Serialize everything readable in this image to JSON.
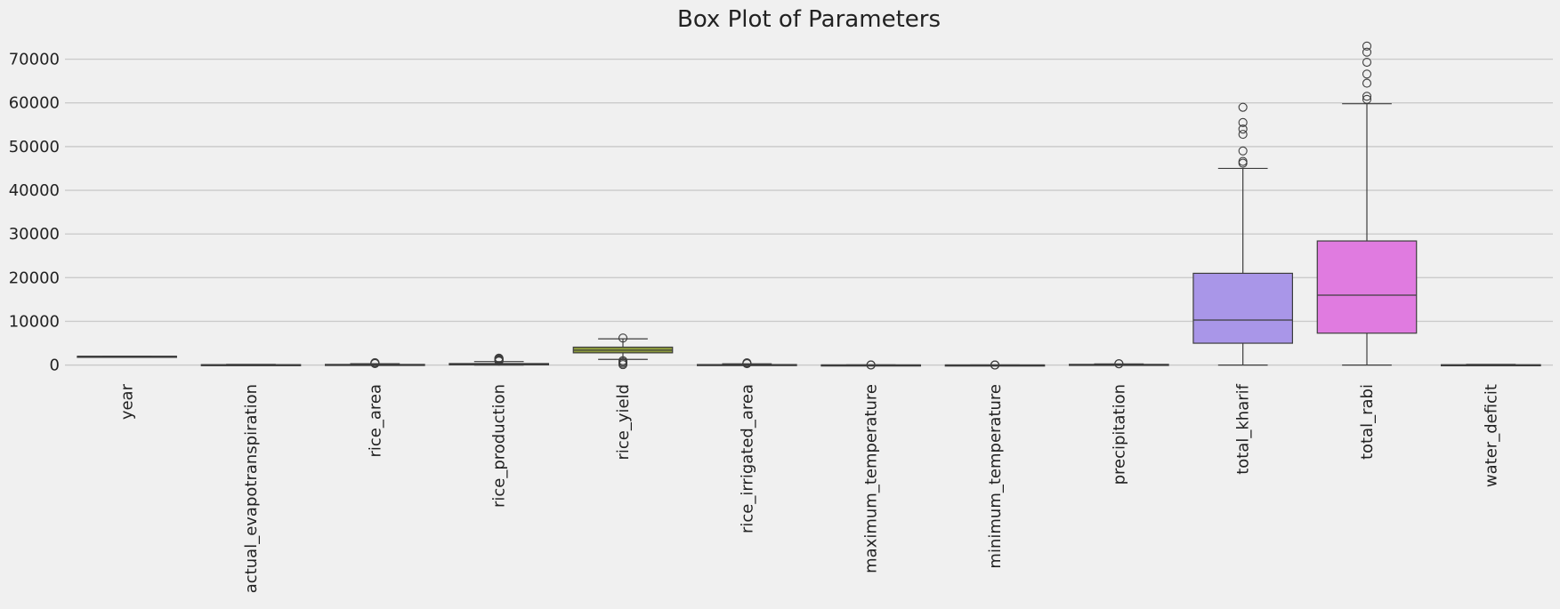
{
  "chart_data": {
    "type": "box",
    "title": "Box Plot of Parameters",
    "xlabel": "",
    "ylabel": "",
    "ylim": [
      -1500,
      75000
    ],
    "yticks": [
      0,
      10000,
      20000,
      30000,
      40000,
      50000,
      60000,
      70000
    ],
    "grid": "horizontal",
    "categories": [
      "year",
      "actual_evapotranspiration",
      "rice_area",
      "rice_production",
      "rice_yield",
      "rice_irrigated_area",
      "maximum_temperature",
      "minimum_temperature",
      "precipitation",
      "total_kharif",
      "total_rabi",
      "water_deficit"
    ],
    "colors": [
      "#4c72b0",
      "#dd8452",
      "#55a868",
      "#c44e52",
      "#8c9a3c",
      "#2ea58d",
      "#36a2a8",
      "#3d8ec7",
      "#6f8fd8",
      "#a996e8",
      "#e07be0",
      "#e58ab4"
    ],
    "boxes": [
      {
        "whislo": 1990,
        "q1": 2000,
        "med": 2005,
        "q3": 2010,
        "whishi": 2017,
        "fliers": []
      },
      {
        "whislo": 30,
        "q1": 60,
        "med": 80,
        "q3": 100,
        "whishi": 150,
        "fliers": []
      },
      {
        "whislo": 0,
        "q1": 20,
        "med": 60,
        "q3": 150,
        "whishi": 320,
        "fliers": [
          350,
          400,
          450,
          500,
          550
        ]
      },
      {
        "whislo": 0,
        "q1": 50,
        "med": 150,
        "q3": 350,
        "whishi": 800,
        "fliers": [
          900,
          1000,
          1100,
          1200,
          1300,
          1400,
          1500,
          1600
        ]
      },
      {
        "whislo": 1300,
        "q1": 2800,
        "med": 3400,
        "q3": 4100,
        "whishi": 6000,
        "fliers": [
          6200,
          1000,
          700,
          400,
          100
        ]
      },
      {
        "whislo": 0,
        "q1": 10,
        "med": 40,
        "q3": 120,
        "whishi": 280,
        "fliers": [
          320,
          380,
          450,
          520
        ]
      },
      {
        "whislo": 28,
        "q1": 31,
        "med": 32,
        "q3": 33,
        "whishi": 36,
        "fliers": [
          38,
          24,
          20
        ]
      },
      {
        "whislo": 14,
        "q1": 18,
        "med": 20,
        "q3": 21,
        "whishi": 24,
        "fliers": [
          26,
          10,
          8
        ]
      },
      {
        "whislo": 0,
        "q1": 60,
        "med": 100,
        "q3": 160,
        "whishi": 250,
        "fliers": [
          280,
          320
        ]
      },
      {
        "whislo": 0,
        "q1": 5000,
        "med": 10300,
        "q3": 21000,
        "whishi": 45000,
        "fliers": [
          46200,
          46600,
          49000,
          52800,
          54000,
          55500,
          59000
        ]
      },
      {
        "whislo": 0,
        "q1": 7300,
        "med": 16000,
        "q3": 28400,
        "whishi": 59800,
        "fliers": [
          60800,
          61500,
          64500,
          66600,
          69300,
          71600,
          73000
        ]
      },
      {
        "whislo": 0,
        "q1": 10,
        "med": 40,
        "q3": 80,
        "whishi": 150,
        "fliers": []
      }
    ]
  }
}
